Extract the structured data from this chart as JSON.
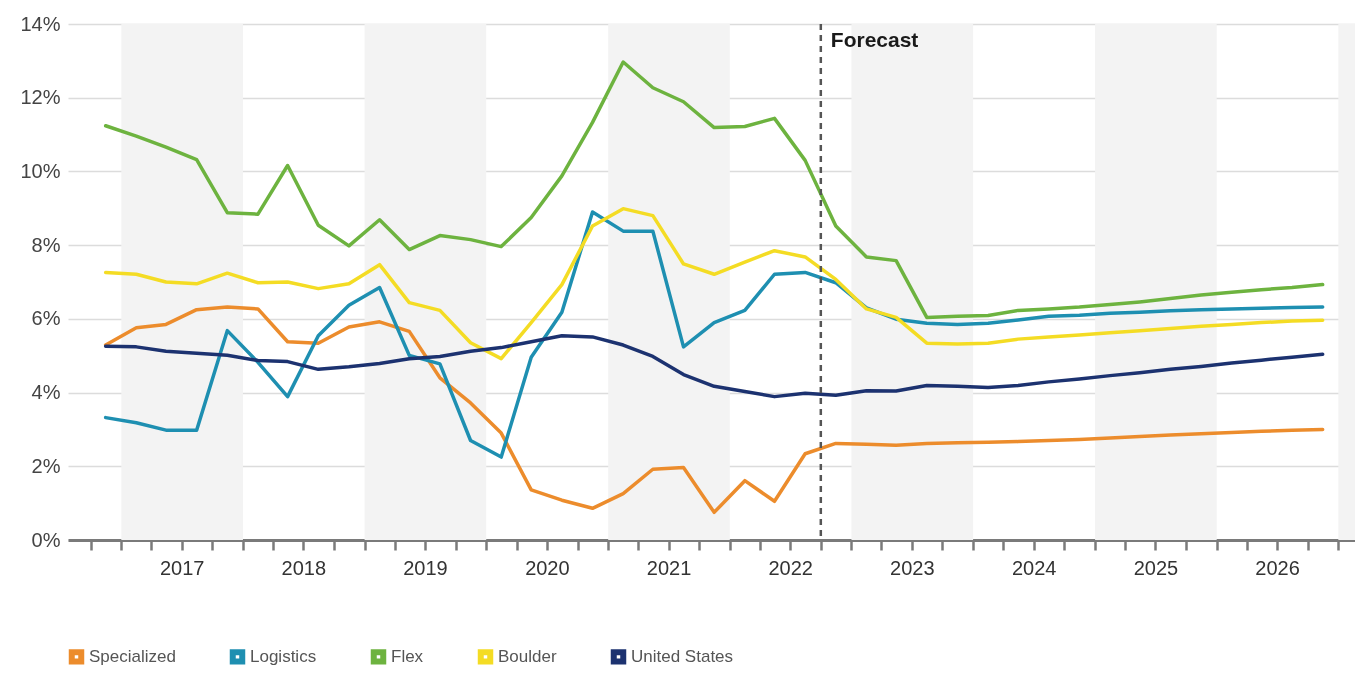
{
  "chart_data": {
    "type": "line",
    "x": [
      "2016-11-15",
      "2017-02-15",
      "2017-05-15",
      "2017-08-15",
      "2017-11-15",
      "2018-02-15",
      "2018-05-15",
      "2018-08-15",
      "2018-11-15",
      "2019-02-15",
      "2019-05-15",
      "2019-08-15",
      "2019-11-15",
      "2020-02-15",
      "2020-05-15",
      "2020-08-15",
      "2020-11-15",
      "2021-02-15",
      "2021-05-15",
      "2021-08-15",
      "2021-11-15",
      "2022-02-15",
      "2022-05-15",
      "2022-08-15",
      "2022-11-15",
      "2023-02-15",
      "2023-05-15",
      "2023-08-15",
      "2023-11-15",
      "2024-02-15",
      "2024-05-15",
      "2024-08-15",
      "2024-11-15",
      "2025-02-15",
      "2025-05-15",
      "2025-08-15",
      "2025-11-15",
      "2026-02-15",
      "2026-05-15",
      "2026-08-15",
      "2026-11-15"
    ],
    "series": [
      {
        "name": "Specialized",
        "color": "#ec8c2c",
        "values": [
          5.29,
          5.76,
          5.85,
          6.25,
          6.32,
          6.27,
          5.38,
          5.34,
          5.78,
          5.92,
          5.66,
          4.4,
          3.72,
          2.9,
          1.36,
          1.08,
          0.86,
          1.26,
          1.92,
          1.97,
          0.75,
          1.61,
          1.05,
          2.34,
          2.62,
          2.6,
          2.57,
          2.62,
          2.64,
          2.65,
          2.67,
          2.7,
          2.73,
          2.77,
          2.81,
          2.85,
          2.88,
          2.92,
          2.95,
          2.98,
          3.0
        ]
      },
      {
        "name": "Logistics",
        "color": "#1e8fb1",
        "values": [
          3.32,
          3.18,
          2.98,
          2.98,
          5.68,
          4.82,
          3.89,
          5.54,
          6.37,
          6.85,
          5.01,
          4.78,
          2.7,
          2.25,
          4.96,
          6.18,
          8.9,
          8.38,
          8.38,
          5.24,
          5.9,
          6.23,
          7.21,
          7.26,
          6.98,
          6.3,
          5.99,
          5.88,
          5.85,
          5.88,
          5.97,
          6.07,
          6.1,
          6.15,
          6.18,
          6.22,
          6.25,
          6.27,
          6.29,
          6.31,
          6.32
        ]
      },
      {
        "name": "Flex",
        "color": "#6db33f",
        "values": [
          11.24,
          10.96,
          10.66,
          10.32,
          8.88,
          8.84,
          10.16,
          8.54,
          7.98,
          8.69,
          7.88,
          8.26,
          8.15,
          7.96,
          8.75,
          9.88,
          11.33,
          12.97,
          12.27,
          11.89,
          11.19,
          11.22,
          11.44,
          10.3,
          8.52,
          7.68,
          7.58,
          6.04,
          6.07,
          6.09,
          6.23,
          6.27,
          6.32,
          6.39,
          6.46,
          6.55,
          6.65,
          6.72,
          6.79,
          6.85,
          6.93
        ]
      },
      {
        "name": "Boulder",
        "color": "#f4dc24",
        "values": [
          7.26,
          7.21,
          7.0,
          6.95,
          7.24,
          6.98,
          7.0,
          6.82,
          6.95,
          7.47,
          6.44,
          6.23,
          5.35,
          4.92,
          5.9,
          6.93,
          8.52,
          8.99,
          8.8,
          7.49,
          7.21,
          7.54,
          7.85,
          7.68,
          7.07,
          6.27,
          6.04,
          5.34,
          5.32,
          5.34,
          5.45,
          5.51,
          5.56,
          5.62,
          5.68,
          5.74,
          5.8,
          5.85,
          5.9,
          5.94,
          5.96
        ]
      },
      {
        "name": "United States",
        "color": "#1c3270",
        "values": [
          5.26,
          5.24,
          5.12,
          5.07,
          5.01,
          4.87,
          4.84,
          4.63,
          4.7,
          4.79,
          4.92,
          4.98,
          5.12,
          5.22,
          5.38,
          5.54,
          5.51,
          5.29,
          4.98,
          4.49,
          4.17,
          4.03,
          3.89,
          3.98,
          3.93,
          4.05,
          4.04,
          4.19,
          4.17,
          4.14,
          4.19,
          4.29,
          4.37,
          4.46,
          4.54,
          4.63,
          4.71,
          4.8,
          4.88,
          4.96,
          5.04
        ]
      }
    ],
    "xlim": [
      "2016-07-25",
      "2027-02-20"
    ],
    "xticks": [
      {
        "value": "2016-10-01",
        "label": null
      },
      {
        "value": "2017-01-01",
        "label": null
      },
      {
        "value": "2017-04-01",
        "label": null
      },
      {
        "value": "2017-07-01",
        "label": "2017"
      },
      {
        "value": "2017-10-01",
        "label": null
      },
      {
        "value": "2018-01-01",
        "label": null
      },
      {
        "value": "2018-04-01",
        "label": null
      },
      {
        "value": "2018-07-01",
        "label": "2018"
      },
      {
        "value": "2018-10-01",
        "label": null
      },
      {
        "value": "2019-01-01",
        "label": null
      },
      {
        "value": "2019-04-01",
        "label": null
      },
      {
        "value": "2019-07-01",
        "label": "2019"
      },
      {
        "value": "2019-10-01",
        "label": null
      },
      {
        "value": "2020-01-01",
        "label": null
      },
      {
        "value": "2020-04-01",
        "label": null
      },
      {
        "value": "2020-07-01",
        "label": "2020"
      },
      {
        "value": "2020-10-01",
        "label": null
      },
      {
        "value": "2021-01-01",
        "label": null
      },
      {
        "value": "2021-04-01",
        "label": null
      },
      {
        "value": "2021-07-01",
        "label": "2021"
      },
      {
        "value": "2021-10-01",
        "label": null
      },
      {
        "value": "2022-01-01",
        "label": null
      },
      {
        "value": "2022-04-01",
        "label": null
      },
      {
        "value": "2022-07-01",
        "label": "2022"
      },
      {
        "value": "2022-10-01",
        "label": null
      },
      {
        "value": "2023-01-01",
        "label": null
      },
      {
        "value": "2023-04-01",
        "label": null
      },
      {
        "value": "2023-07-01",
        "label": "2023"
      },
      {
        "value": "2023-10-01",
        "label": null
      },
      {
        "value": "2024-01-01",
        "label": null
      },
      {
        "value": "2024-04-01",
        "label": null
      },
      {
        "value": "2024-07-01",
        "label": "2024"
      },
      {
        "value": "2024-10-01",
        "label": null
      },
      {
        "value": "2025-01-01",
        "label": null
      },
      {
        "value": "2025-04-01",
        "label": null
      },
      {
        "value": "2025-07-01",
        "label": "2025"
      },
      {
        "value": "2025-10-01",
        "label": null
      },
      {
        "value": "2026-01-01",
        "label": null
      },
      {
        "value": "2026-04-01",
        "label": null
      },
      {
        "value": "2026-07-01",
        "label": "2026"
      },
      {
        "value": "2026-10-01",
        "label": null
      },
      {
        "value": "2027-01-01",
        "label": null
      }
    ],
    "ylim": [
      0,
      14
    ],
    "yticks": [
      {
        "value": 0,
        "label": "0%"
      },
      {
        "value": 2,
        "label": "2%"
      },
      {
        "value": 4,
        "label": "4%"
      },
      {
        "value": 6,
        "label": "6%"
      },
      {
        "value": 8,
        "label": "8%"
      },
      {
        "value": 10,
        "label": "10%"
      },
      {
        "value": 12,
        "label": "12%"
      },
      {
        "value": 14,
        "label": "14%"
      }
    ],
    "grid": "y",
    "legend": "bottom",
    "line_style": "solid",
    "marker": "none",
    "ref_lines": [
      {
        "axis": "x",
        "value": "2022-10-01",
        "label": "Forecast",
        "color": "#555555",
        "line_style": "dashed"
      }
    ],
    "bands": [
      {
        "axis": "x",
        "from": "2017-01-01",
        "to": "2018-01-01",
        "color": "#f3f3f3"
      },
      {
        "axis": "x",
        "from": "2019-01-01",
        "to": "2020-01-01",
        "color": "#f3f3f3"
      },
      {
        "axis": "x",
        "from": "2021-01-01",
        "to": "2022-01-01",
        "color": "#f3f3f3"
      },
      {
        "axis": "x",
        "from": "2023-01-01",
        "to": "2024-01-01",
        "color": "#f3f3f3"
      },
      {
        "axis": "x",
        "from": "2025-01-01",
        "to": "2026-01-01",
        "color": "#f3f3f3"
      },
      {
        "axis": "x",
        "from": "2027-01-01",
        "to": "2027-02-20",
        "color": "#f3f3f3"
      }
    ]
  }
}
